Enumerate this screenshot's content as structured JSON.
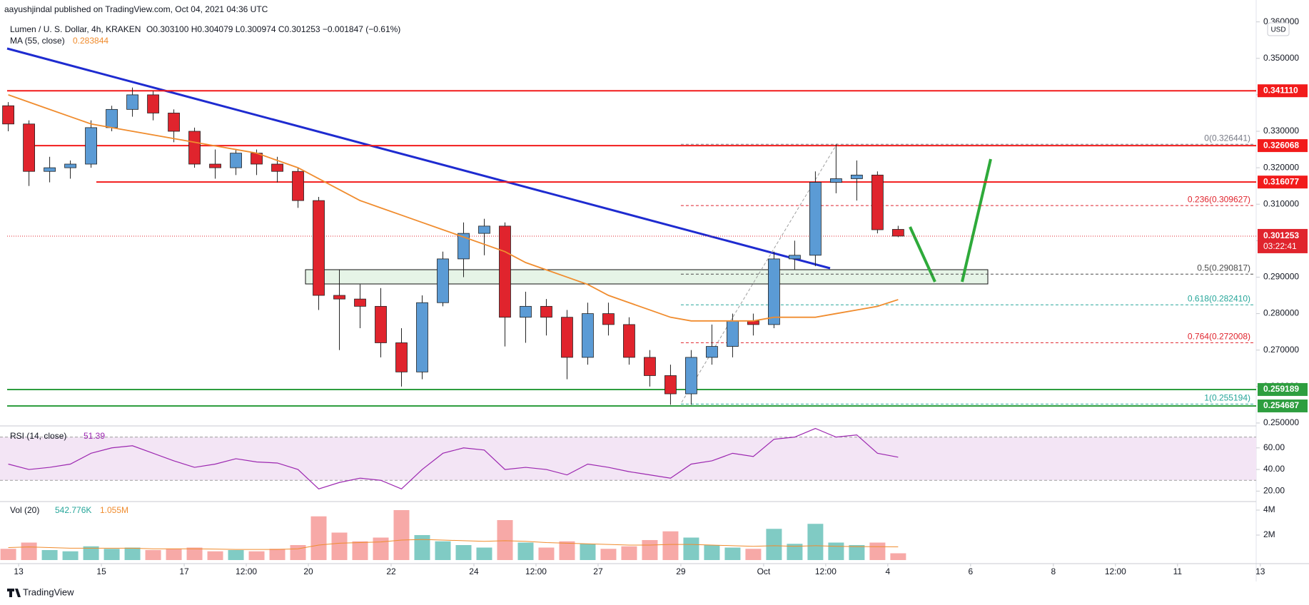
{
  "chart_data": {
    "type": "candlestick",
    "publisher": "aayushjindal published on TradingView.com, Oct 04, 2021 04:36 UTC",
    "symbol": "Lumen / U. S. Dollar, 4h, KRAKEN",
    "ohlc_text": "O0.303100 H0.304079 L0.300974 C0.301253 −0.001847 (−0.61%)",
    "ma_name": "MA (55, close)",
    "ma_value": "0.283844",
    "currency": "USD",
    "footer": "TradingView",
    "x": [
      -0.25,
      0.25,
      0.75,
      1.25,
      1.75,
      2.25,
      2.75,
      3.25,
      3.75,
      4.25,
      4.75,
      5.25,
      5.75,
      6.25,
      6.75,
      7.25,
      7.75,
      8.25,
      8.75,
      9.25,
      9.75,
      10.25,
      10.75,
      11.25,
      11.75,
      12.25,
      12.75,
      13.25,
      13.75,
      14.25,
      14.75,
      15.25,
      15.75,
      16.25,
      16.75,
      17.25,
      17.75,
      18.25,
      18.75,
      19.25,
      19.75,
      20.25,
      20.75,
      21.25
    ],
    "open": [
      0.337,
      0.332,
      0.319,
      0.32,
      0.321,
      0.331,
      0.336,
      0.34,
      0.335,
      0.33,
      0.321,
      0.32,
      0.324,
      0.321,
      0.319,
      0.311,
      0.285,
      0.284,
      0.282,
      0.272,
      0.264,
      0.283,
      0.295,
      0.302,
      0.304,
      0.279,
      0.282,
      0.279,
      0.268,
      0.28,
      0.277,
      0.268,
      0.263,
      0.258,
      0.268,
      0.271,
      0.278,
      0.277,
      0.295,
      0.296,
      0.316,
      0.317,
      0.318,
      0.3031
    ],
    "high": [
      0.338,
      0.333,
      0.323,
      0.322,
      0.333,
      0.337,
      0.342,
      0.341,
      0.336,
      0.331,
      0.325,
      0.325,
      0.325,
      0.323,
      0.32,
      0.312,
      0.292,
      0.288,
      0.287,
      0.276,
      0.285,
      0.297,
      0.305,
      0.306,
      0.305,
      0.286,
      0.284,
      0.281,
      0.283,
      0.283,
      0.279,
      0.27,
      0.266,
      0.27,
      0.277,
      0.28,
      0.28,
      0.297,
      0.3,
      0.319,
      0.3264,
      0.322,
      0.319,
      0.304079
    ],
    "low": [
      0.33,
      0.315,
      0.316,
      0.317,
      0.32,
      0.33,
      0.334,
      0.333,
      0.327,
      0.32,
      0.317,
      0.318,
      0.318,
      0.316,
      0.309,
      0.281,
      0.27,
      0.276,
      0.268,
      0.26,
      0.262,
      0.282,
      0.29,
      0.296,
      0.271,
      0.272,
      0.274,
      0.262,
      0.266,
      0.274,
      0.266,
      0.26,
      0.255,
      0.255,
      0.266,
      0.268,
      0.274,
      0.276,
      0.292,
      0.293,
      0.313,
      0.311,
      0.302,
      0.300974
    ],
    "close": [
      0.332,
      0.319,
      0.32,
      0.321,
      0.331,
      0.336,
      0.34,
      0.335,
      0.33,
      0.321,
      0.32,
      0.324,
      0.321,
      0.319,
      0.311,
      0.285,
      0.284,
      0.282,
      0.272,
      0.264,
      0.283,
      0.295,
      0.302,
      0.304,
      0.279,
      0.282,
      0.279,
      0.268,
      0.28,
      0.277,
      0.268,
      0.263,
      0.258,
      0.268,
      0.271,
      0.278,
      0.277,
      0.295,
      0.296,
      0.316,
      0.317,
      0.318,
      0.303,
      0.301253
    ],
    "ma": [
      0.34,
      0.338,
      0.336,
      0.334,
      0.332,
      0.331,
      0.33,
      0.329,
      0.328,
      0.327,
      0.326,
      0.325,
      0.324,
      0.322,
      0.32,
      0.317,
      0.314,
      0.311,
      0.309,
      0.307,
      0.305,
      0.303,
      0.301,
      0.299,
      0.297,
      0.294,
      0.292,
      0.29,
      0.288,
      0.285,
      0.283,
      0.281,
      0.279,
      0.278,
      0.278,
      0.278,
      0.278,
      0.279,
      0.279,
      0.279,
      0.28,
      0.281,
      0.282,
      0.283844
    ],
    "up_color": "#5b9bd5",
    "down_color": "#e0242d",
    "ma_color": "#f08c2e",
    "ylim": [
      0.2492,
      0.366
    ],
    "yticks": [
      {
        "value": 0.25,
        "label": "0.250000"
      },
      {
        "value": 0.26,
        "label": "0.260000"
      },
      {
        "value": 0.27,
        "label": "0.270000"
      },
      {
        "value": 0.28,
        "label": "0.280000"
      },
      {
        "value": 0.29,
        "label": "0.290000"
      },
      {
        "value": 0.3,
        "label": "0.300000"
      },
      {
        "value": 0.31,
        "label": "0.310000"
      },
      {
        "value": 0.32,
        "label": "0.320000"
      },
      {
        "value": 0.33,
        "label": "0.330000"
      },
      {
        "value": 0.34,
        "label": "0.340000"
      },
      {
        "value": 0.35,
        "label": "0.350000"
      },
      {
        "value": 0.36,
        "label": "0.360000"
      }
    ],
    "xlim": [
      -0.45,
      29.9
    ],
    "xticks": [
      {
        "value": 0,
        "label": "13"
      },
      {
        "value": 2,
        "label": "15"
      },
      {
        "value": 4,
        "label": "17"
      },
      {
        "value": 5.5,
        "label": "12:00"
      },
      {
        "value": 7,
        "label": "20"
      },
      {
        "value": 9,
        "label": "22"
      },
      {
        "value": 11,
        "label": "24"
      },
      {
        "value": 12.5,
        "label": "12:00"
      },
      {
        "value": 14,
        "label": "27"
      },
      {
        "value": 16,
        "label": "29"
      },
      {
        "value": 18,
        "label": "Oct"
      },
      {
        "value": 19.5,
        "label": "12:00"
      },
      {
        "value": 21,
        "label": "4"
      },
      {
        "value": 23,
        "label": "6"
      },
      {
        "value": 25,
        "label": "8"
      },
      {
        "value": 26.5,
        "label": "12:00"
      },
      {
        "value": 28,
        "label": "11"
      },
      {
        "value": 30,
        "label": "13"
      }
    ],
    "levels": [
      {
        "value": 0.34111,
        "label": "0.341110",
        "color": "#f21b1b"
      },
      {
        "value": 0.326068,
        "label": "0.326068",
        "color": "#f21b1b"
      },
      {
        "value": 0.316077,
        "label": "0.316077",
        "color": "#f21b1b"
      },
      {
        "value": 0.259189,
        "label": "0.259189",
        "color": "#2e9e3f"
      },
      {
        "value": 0.254687,
        "label": "0.254687",
        "color": "#2e9e3f"
      }
    ],
    "fib": [
      {
        "value": 0.326441,
        "label": "0(0.326441)",
        "color": "#787b86"
      },
      {
        "value": 0.309627,
        "label": "0.236(0.309627)",
        "color": "#e0242d"
      },
      {
        "value": 0.290817,
        "label": "0.5(0.290817)",
        "color": "#4a4a4a"
      },
      {
        "value": 0.28241,
        "label": "0.618(0.282410)",
        "color": "#26a69a"
      },
      {
        "value": 0.272008,
        "label": "0.764(0.272008)",
        "color": "#e0242d"
      },
      {
        "value": 0.255194,
        "label": "1(0.255194)",
        "color": "#26a69a"
      }
    ],
    "last_price": {
      "value": 0.301253,
      "label": "0.301253",
      "countdown": "03:22:41"
    },
    "rsi_name": "RSI (14, close)",
    "rsi_value": "51.39",
    "rsi_color": "#9c27b0",
    "rsi": [
      45,
      40,
      42,
      45,
      55,
      60,
      62,
      55,
      48,
      42,
      45,
      50,
      47,
      46,
      40,
      22,
      28,
      32,
      30,
      22,
      40,
      55,
      60,
      58,
      40,
      42,
      40,
      35,
      45,
      42,
      38,
      35,
      32,
      45,
      48,
      55,
      52,
      68,
      70,
      78,
      70,
      72,
      55,
      51.39
    ],
    "rsi_lim": [
      11,
      79
    ],
    "rsi_band": [
      30,
      70
    ],
    "rsi_ticks": [
      {
        "value": 20,
        "label": "20.00"
      },
      {
        "value": 40,
        "label": "40.00"
      },
      {
        "value": 60,
        "label": "60.00"
      }
    ],
    "vol_name": "Vol (20)",
    "vol_value": "542.776K",
    "vol_ma_value": "1.055M",
    "volume": [
      900000,
      1400000,
      800000,
      700000,
      1100000,
      900000,
      1000000,
      800000,
      900000,
      1000000,
      700000,
      800000,
      700000,
      900000,
      1200000,
      3500000,
      2200000,
      1500000,
      1800000,
      4000000,
      2000000,
      1500000,
      1200000,
      1000000,
      3200000,
      1400000,
      1000000,
      1500000,
      1300000,
      900000,
      1100000,
      1600000,
      2300000,
      1800000,
      1200000,
      1000000,
      900000,
      2500000,
      1300000,
      2900000,
      1400000,
      1200000,
      1400000,
      542776
    ],
    "vol_ma": [
      1000000,
      1050000,
      1000000,
      950000,
      950000,
      950000,
      950000,
      900000,
      900000,
      900000,
      880000,
      850000,
      850000,
      850000,
      900000,
      1200000,
      1350000,
      1400000,
      1450000,
      1600000,
      1650000,
      1600000,
      1550000,
      1500000,
      1550000,
      1500000,
      1400000,
      1350000,
      1300000,
      1250000,
      1200000,
      1200000,
      1250000,
      1250000,
      1200000,
      1150000,
      1100000,
      1150000,
      1100000,
      1150000,
      1100000,
      1080000,
      1070000,
      1055000
    ],
    "vol_lim": [
      0,
      4570000
    ],
    "vol_ticks": [
      {
        "value": 2000000,
        "label": "2M"
      },
      {
        "value": 4000000,
        "label": "4M"
      }
    ]
  }
}
